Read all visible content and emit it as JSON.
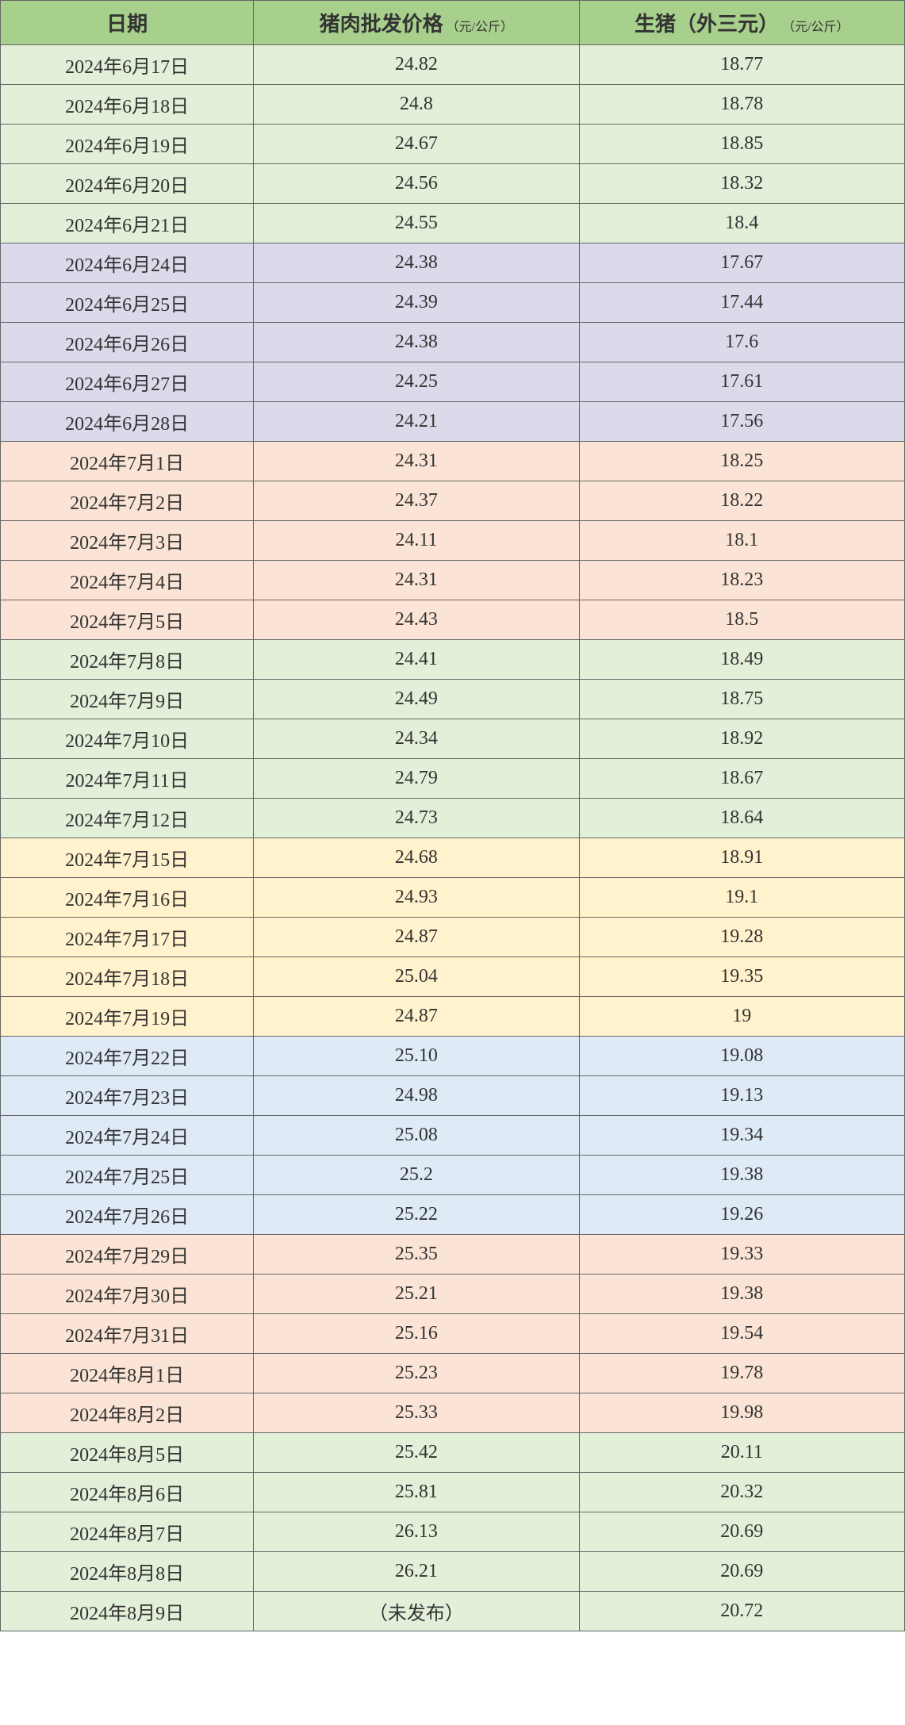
{
  "table": {
    "type": "table",
    "header_bg": "#a8d08d",
    "border_color": "#666666",
    "text_color": "#333333",
    "columns": [
      {
        "label": "日期",
        "unit": ""
      },
      {
        "label": "猪肉批发价格",
        "unit": "（元/公斤）"
      },
      {
        "label": "生猪（外三元）",
        "unit": "（元/公斤）"
      }
    ],
    "row_group_colors": {
      "green": "#e2efd9",
      "purple": "#dadaea",
      "peach": "#fbe4d5",
      "yellow": "#fff2cc",
      "blue": "#deeaf6"
    },
    "rows": [
      {
        "date": "2024年6月17日",
        "price1": "24.82",
        "price2": "18.77",
        "bg": "green"
      },
      {
        "date": "2024年6月18日",
        "price1": "24.8",
        "price2": "18.78",
        "bg": "green"
      },
      {
        "date": "2024年6月19日",
        "price1": "24.67",
        "price2": "18.85",
        "bg": "green"
      },
      {
        "date": "2024年6月20日",
        "price1": "24.56",
        "price2": "18.32",
        "bg": "green"
      },
      {
        "date": "2024年6月21日",
        "price1": "24.55",
        "price2": "18.4",
        "bg": "green"
      },
      {
        "date": "2024年6月24日",
        "price1": "24.38",
        "price2": "17.67",
        "bg": "purple"
      },
      {
        "date": "2024年6月25日",
        "price1": "24.39",
        "price2": "17.44",
        "bg": "purple"
      },
      {
        "date": "2024年6月26日",
        "price1": "24.38",
        "price2": "17.6",
        "bg": "purple"
      },
      {
        "date": "2024年6月27日",
        "price1": "24.25",
        "price2": "17.61",
        "bg": "purple"
      },
      {
        "date": "2024年6月28日",
        "price1": "24.21",
        "price2": "17.56",
        "bg": "purple"
      },
      {
        "date": "2024年7月1日",
        "price1": "24.31",
        "price2": "18.25",
        "bg": "peach"
      },
      {
        "date": "2024年7月2日",
        "price1": "24.37",
        "price2": "18.22",
        "bg": "peach"
      },
      {
        "date": "2024年7月3日",
        "price1": "24.11",
        "price2": "18.1",
        "bg": "peach"
      },
      {
        "date": "2024年7月4日",
        "price1": "24.31",
        "price2": "18.23",
        "bg": "peach"
      },
      {
        "date": "2024年7月5日",
        "price1": "24.43",
        "price2": "18.5",
        "bg": "peach"
      },
      {
        "date": "2024年7月8日",
        "price1": "24.41",
        "price2": "18.49",
        "bg": "green"
      },
      {
        "date": "2024年7月9日",
        "price1": "24.49",
        "price2": "18.75",
        "bg": "green"
      },
      {
        "date": "2024年7月10日",
        "price1": "24.34",
        "price2": "18.92",
        "bg": "green"
      },
      {
        "date": "2024年7月11日",
        "price1": "24.79",
        "price2": "18.67",
        "bg": "green"
      },
      {
        "date": "2024年7月12日",
        "price1": "24.73",
        "price2": "18.64",
        "bg": "green"
      },
      {
        "date": "2024年7月15日",
        "price1": "24.68",
        "price2": "18.91",
        "bg": "yellow"
      },
      {
        "date": "2024年7月16日",
        "price1": "24.93",
        "price2": "19.1",
        "bg": "yellow"
      },
      {
        "date": "2024年7月17日",
        "price1": "24.87",
        "price2": "19.28",
        "bg": "yellow"
      },
      {
        "date": "2024年7月18日",
        "price1": "25.04",
        "price2": "19.35",
        "bg": "yellow"
      },
      {
        "date": "2024年7月19日",
        "price1": "24.87",
        "price2": "19",
        "bg": "yellow"
      },
      {
        "date": "2024年7月22日",
        "price1": "25.10",
        "price2": "19.08",
        "bg": "blue"
      },
      {
        "date": "2024年7月23日",
        "price1": "24.98",
        "price2": "19.13",
        "bg": "blue"
      },
      {
        "date": "2024年7月24日",
        "price1": "25.08",
        "price2": "19.34",
        "bg": "blue"
      },
      {
        "date": "2024年7月25日",
        "price1": "25.2",
        "price2": "19.38",
        "bg": "blue"
      },
      {
        "date": "2024年7月26日",
        "price1": "25.22",
        "price2": "19.26",
        "bg": "blue"
      },
      {
        "date": "2024年7月29日",
        "price1": "25.35",
        "price2": "19.33",
        "bg": "peach"
      },
      {
        "date": "2024年7月30日",
        "price1": "25.21",
        "price2": "19.38",
        "bg": "peach"
      },
      {
        "date": "2024年7月31日",
        "price1": "25.16",
        "price2": "19.54",
        "bg": "peach"
      },
      {
        "date": "2024年8月1日",
        "price1": "25.23",
        "price2": "19.78",
        "bg": "peach"
      },
      {
        "date": "2024年8月2日",
        "price1": "25.33",
        "price2": "19.98",
        "bg": "peach"
      },
      {
        "date": "2024年8月5日",
        "price1": "25.42",
        "price2": "20.11",
        "bg": "green"
      },
      {
        "date": "2024年8月6日",
        "price1": "25.81",
        "price2": "20.32",
        "bg": "green"
      },
      {
        "date": "2024年8月7日",
        "price1": "26.13",
        "price2": "20.69",
        "bg": "green"
      },
      {
        "date": "2024年8月8日",
        "price1": "26.21",
        "price2": "20.69",
        "bg": "green"
      },
      {
        "date": "2024年8月9日",
        "price1": "（未发布）",
        "price2": "20.72",
        "bg": "green"
      }
    ]
  }
}
